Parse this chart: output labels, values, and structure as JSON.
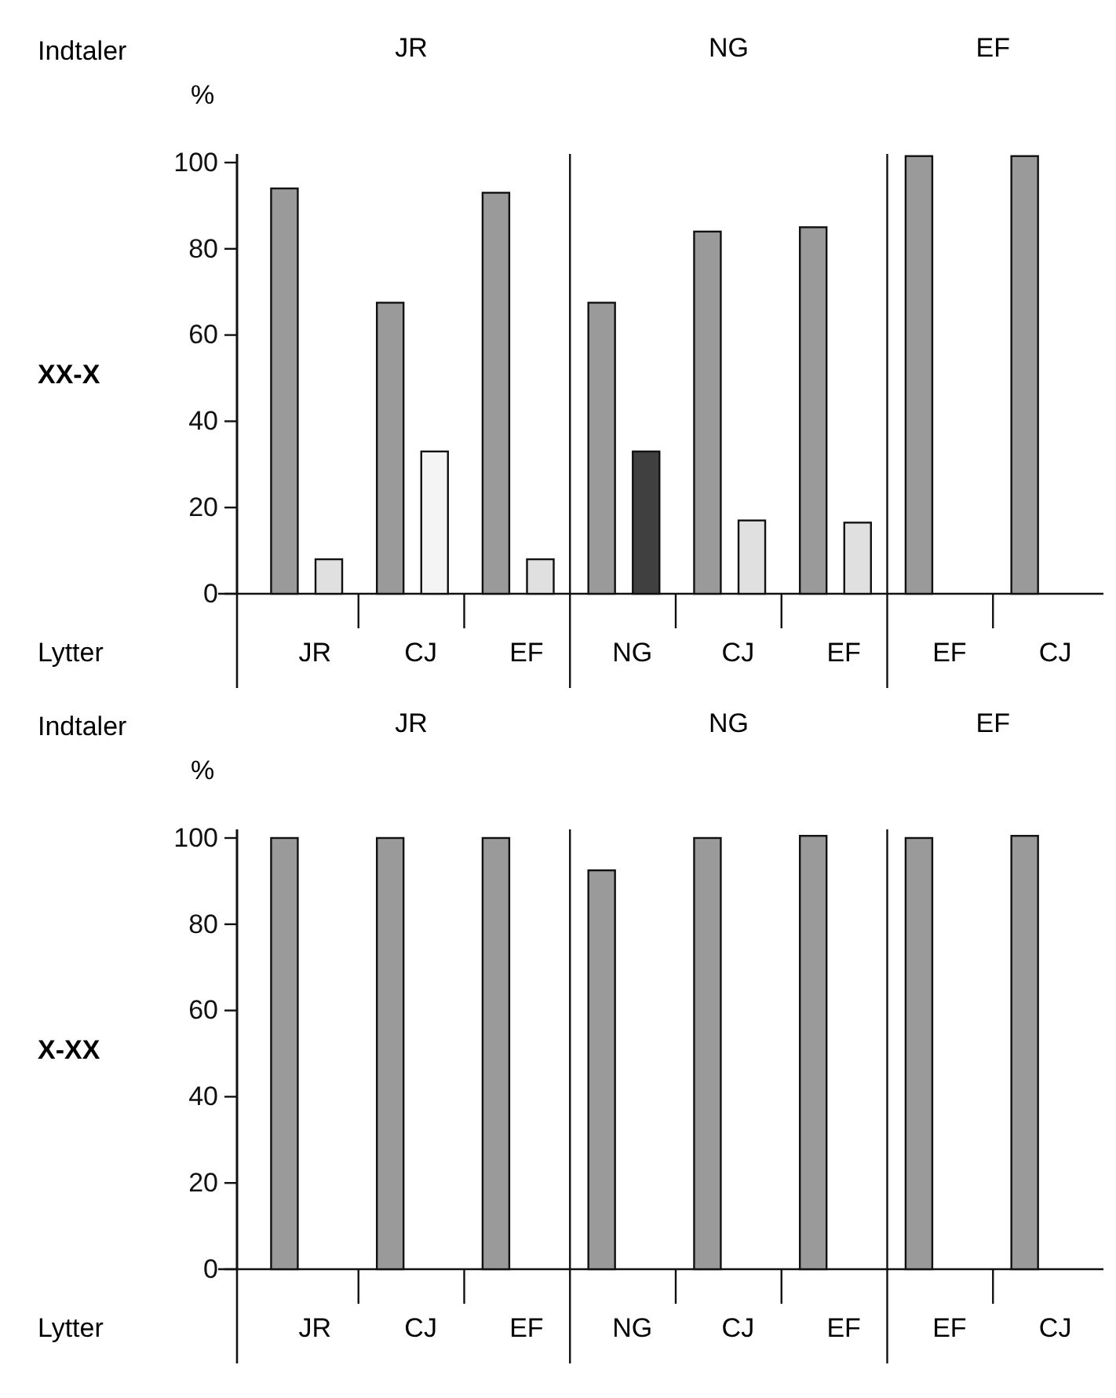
{
  "chart_data": [
    {
      "type": "bar",
      "ylabel": "XX-X",
      "categories": [
        "JR",
        "CJ",
        "EF",
        "NG",
        "CJ",
        "EF",
        "EF",
        "CJ"
      ],
      "series": [
        {
          "color": "#9a9a9a",
          "values": [
            94,
            67.5,
            93,
            67.5,
            84,
            85,
            101.5,
            101.5
          ]
        },
        {
          "colors": [
            "#e0e0e0",
            "#f4f4f4",
            "#e0e0e0",
            "#404040",
            "#e0e0e0",
            "#e0e0e0",
            null,
            null
          ],
          "values": [
            8,
            33,
            8,
            33,
            17,
            16.5,
            null,
            null
          ]
        }
      ],
      "ylim": [
        0,
        102
      ],
      "yticks": [
        0,
        20,
        40,
        60,
        80,
        100
      ],
      "grid": false,
      "annotations": [
        "Indtaler",
        "%",
        "Lytter",
        "JR",
        "NG",
        "EF"
      ]
    },
    {
      "type": "bar",
      "ylabel": "X-XX",
      "categories": [
        "JR",
        "CJ",
        "EF",
        "NG",
        "CJ",
        "EF",
        "EF",
        "CJ"
      ],
      "series": [
        {
          "color": "#9a9a9a",
          "values": [
            100,
            100,
            100,
            92.5,
            100,
            100.5,
            100,
            100.5
          ]
        }
      ],
      "ylim": [
        0,
        102
      ],
      "yticks": [
        0,
        20,
        40,
        60,
        80,
        100
      ],
      "grid": false,
      "annotations": [
        "Indtaler",
        "%",
        "Lytter",
        "JR",
        "NG",
        "EF"
      ]
    }
  ]
}
